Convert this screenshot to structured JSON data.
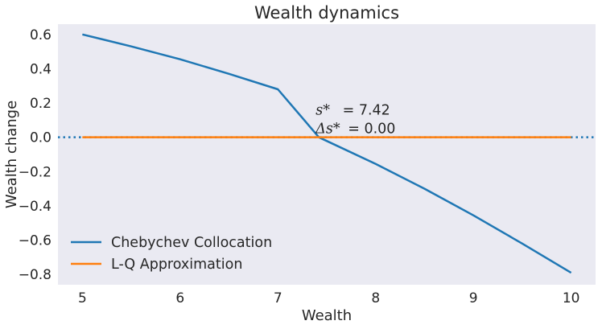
{
  "chart_data": {
    "type": "line",
    "title": "Wealth dynamics",
    "xlabel": "Wealth",
    "ylabel": "Wealth change",
    "xlim": [
      4.75,
      10.25
    ],
    "ylim": [
      -0.86,
      0.66
    ],
    "x_ticks": [
      5,
      6,
      7,
      8,
      9,
      10
    ],
    "x_tick_labels": [
      "5",
      "6",
      "7",
      "8",
      "9",
      "10"
    ],
    "y_ticks": [
      0.6,
      0.4,
      0.2,
      0.0,
      -0.2,
      -0.4,
      -0.6,
      -0.8
    ],
    "y_tick_labels": [
      "0.6",
      "0.4",
      "0.2",
      "0.0",
      "−0.2",
      "−0.4",
      "−0.6",
      "−0.8"
    ],
    "grid": false,
    "legend_position": "lower-left",
    "series": [
      {
        "name": "Chebychev Collocation",
        "color": "#1f77b4",
        "style": "solid",
        "x": [
          5.0,
          5.5,
          6.0,
          6.5,
          7.0,
          7.42,
          8.0,
          8.5,
          9.0,
          9.5,
          10.0
        ],
        "y": [
          0.6,
          0.53,
          0.455,
          0.37,
          0.28,
          0.0,
          -0.155,
          -0.3,
          -0.455,
          -0.62,
          -0.79
        ]
      },
      {
        "name": "L-Q Approximation",
        "color": "#ff7f0e",
        "style": "solid",
        "x": [
          5.0,
          10.0
        ],
        "y": [
          0.0,
          0.0
        ]
      }
    ],
    "reference_line": {
      "y": 0.0,
      "color": "#1f77b4",
      "style": "dotted"
    },
    "annotation": {
      "line1_symbol": "s*",
      "line1_value": "= 7.42",
      "line2_symbol": "Δs*",
      "line2_value": "= 0.00",
      "anchor_x": 7.42,
      "anchor_y": 0.0
    }
  }
}
